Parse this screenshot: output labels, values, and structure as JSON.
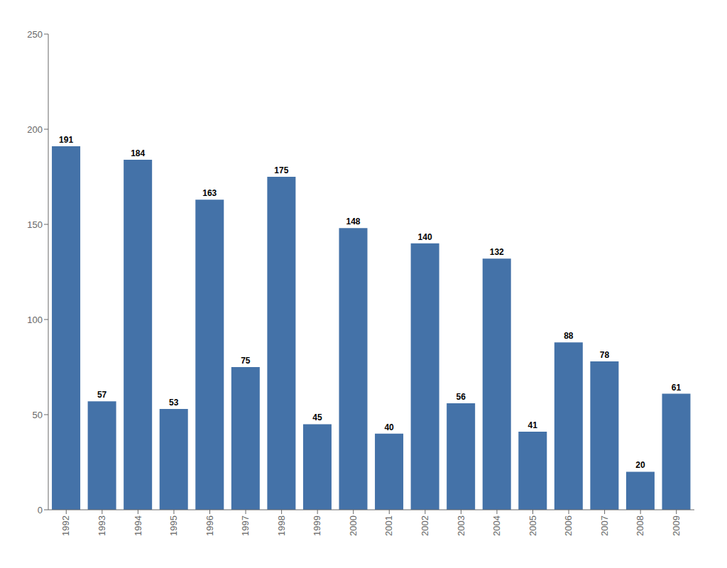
{
  "chart_data": {
    "type": "bar",
    "categories": [
      "1992",
      "1993",
      "1994",
      "1995",
      "1996",
      "1997",
      "1998",
      "1999",
      "2000",
      "2001",
      "2002",
      "2003",
      "2004",
      "2005",
      "2006",
      "2007",
      "2008",
      "2009"
    ],
    "values": [
      191,
      57,
      184,
      53,
      163,
      75,
      175,
      45,
      148,
      40,
      140,
      56,
      132,
      41,
      88,
      78,
      20,
      61
    ],
    "color": "#4472a8",
    "ylim": [
      0,
      250
    ],
    "yticks": [
      0,
      50,
      100,
      150,
      200,
      250
    ],
    "grid": false,
    "data_labels": true
  }
}
